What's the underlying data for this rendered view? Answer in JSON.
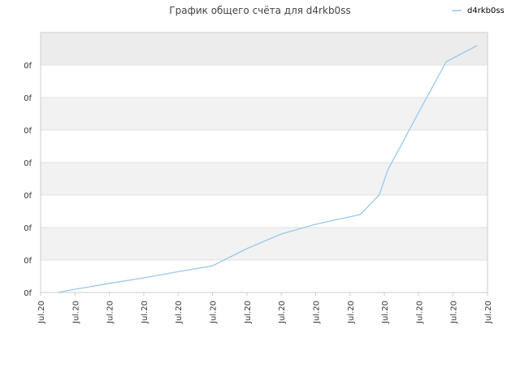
{
  "chart_data": {
    "type": "line",
    "title": "График общего счёта для d4rkb0ss",
    "xlabel": "",
    "ylabel": "",
    "x_tick_labels": [
      "Jul.20",
      "Jul.20",
      "Jul.20",
      "Jul.20",
      "Jul.20",
      "Jul.20",
      "Jul.20",
      "Jul.20",
      "Jul.20",
      "Jul.20",
      "Jul.20",
      "Jul.20",
      "Jul.20",
      "Jul.20"
    ],
    "y_tick_labels": [
      "0f",
      "0f",
      "0f",
      "0f",
      "0f",
      "0f",
      "0f",
      "0f"
    ],
    "ylim": [
      0,
      8
    ],
    "grid": true,
    "legend_position": "top-right",
    "colors": {
      "series": "#99c8f0",
      "band": "#f2f2f2",
      "top_band": "#ececec",
      "grid": "#e2e2e2",
      "axis": "#cccccc"
    },
    "series": [
      {
        "name": "d4rkb0ss",
        "x": [
          0.5,
          1,
          2,
          3,
          4,
          5,
          6,
          7,
          8,
          9.3,
          9.85,
          10.1,
          11,
          11.8,
          12.7
        ],
        "y": [
          0,
          0.1,
          0.28,
          0.45,
          0.64,
          0.82,
          1.35,
          1.8,
          2.1,
          2.4,
          3.0,
          3.77,
          5.55,
          7.1,
          7.6
        ]
      }
    ]
  }
}
